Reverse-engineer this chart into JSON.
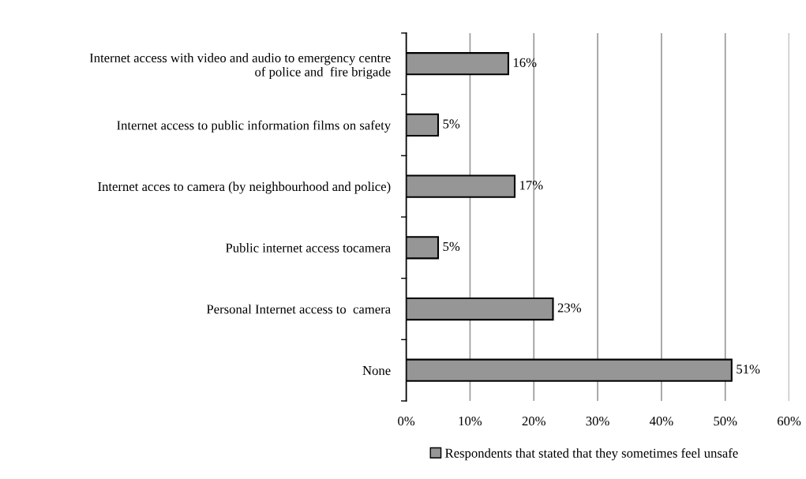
{
  "chart_data": {
    "type": "bar",
    "orientation": "horizontal",
    "categories": [
      "Internet access with video and audio to emergency centre\nof police and  fire brigade",
      "Internet access to public information films on safety",
      "Internet acces to camera (by neighbourhood and police)",
      "Public internet access tocamera",
      "Personal Internet access to  camera",
      "None"
    ],
    "series": [
      {
        "name": "Respondents that stated that they sometimes feel unsafe",
        "color": "#969696",
        "values": [
          16,
          5,
          17,
          5,
          23,
          51
        ],
        "value_labels": [
          "16%",
          "5%",
          "17%",
          "5%",
          "23%",
          "51%"
        ]
      }
    ],
    "xlim": [
      0,
      60
    ],
    "xticks": [
      {
        "value": 0,
        "label": "0%"
      },
      {
        "value": 10,
        "label": "10%"
      },
      {
        "value": 20,
        "label": "20%"
      },
      {
        "value": 30,
        "label": "30%"
      },
      {
        "value": 40,
        "label": "40%"
      },
      {
        "value": 50,
        "label": "50%"
      },
      {
        "value": 60,
        "label": "60%"
      }
    ],
    "grid": "x",
    "legend": "bottom"
  }
}
